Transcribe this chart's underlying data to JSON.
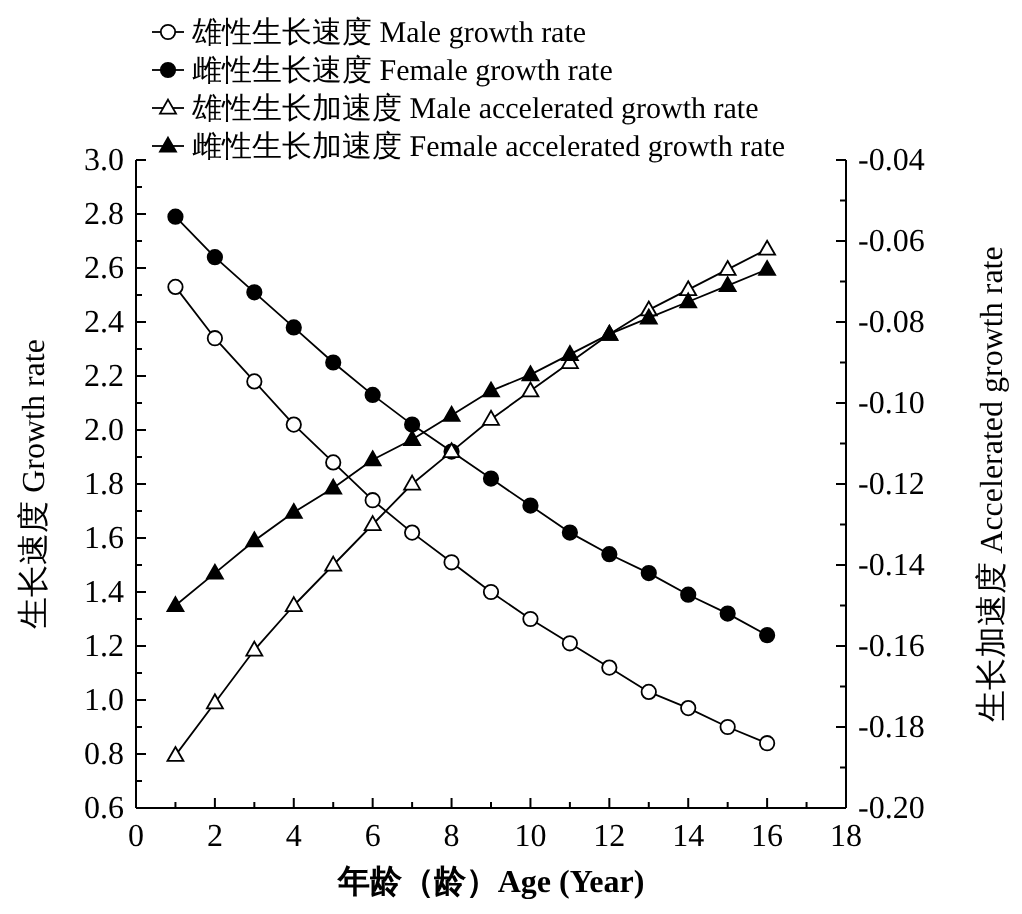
{
  "chart_data": {
    "type": "line",
    "xlabel": "年龄（龄）Age (Year)",
    "ylabel": "生长速度 Growth rate",
    "y2label": "生长加速度 Accelerated growth rate",
    "x": [
      1,
      2,
      3,
      4,
      5,
      6,
      7,
      8,
      9,
      10,
      11,
      12,
      13,
      14,
      15,
      16
    ],
    "xlim": [
      0,
      18
    ],
    "xticks": [
      0,
      {
        "value": 1,
        "label": null
      },
      2,
      {
        "value": 3,
        "label": null
      },
      4,
      {
        "value": 5,
        "label": null
      },
      6,
      {
        "value": 7,
        "label": null
      },
      8,
      {
        "value": 9,
        "label": null
      },
      10,
      {
        "value": 11,
        "label": null
      },
      12,
      {
        "value": 13,
        "label": null
      },
      14,
      {
        "value": 15,
        "label": null
      },
      16,
      {
        "value": 17,
        "label": null
      },
      18
    ],
    "ylim": [
      0.6,
      3.0
    ],
    "yticks": [
      {
        "value": 0.6,
        "label": "0.6"
      },
      {
        "value": 0.7,
        "label": null
      },
      {
        "value": 0.8,
        "label": "0.8"
      },
      {
        "value": 0.9,
        "label": null
      },
      {
        "value": 1.0,
        "label": "1.0"
      },
      {
        "value": 1.1,
        "label": null
      },
      {
        "value": 1.2,
        "label": "1.2"
      },
      {
        "value": 1.3,
        "label": null
      },
      {
        "value": 1.4,
        "label": "1.4"
      },
      {
        "value": 1.5,
        "label": null
      },
      {
        "value": 1.6,
        "label": "1.6"
      },
      {
        "value": 1.7,
        "label": null
      },
      {
        "value": 1.8,
        "label": "1.8"
      },
      {
        "value": 1.9,
        "label": null
      },
      {
        "value": 2.0,
        "label": "2.0"
      },
      {
        "value": 2.1,
        "label": null
      },
      {
        "value": 2.2,
        "label": "2.2"
      },
      {
        "value": 2.3,
        "label": null
      },
      {
        "value": 2.4,
        "label": "2.4"
      },
      {
        "value": 2.5,
        "label": null
      },
      {
        "value": 2.6,
        "label": "2.6"
      },
      {
        "value": 2.7,
        "label": null
      },
      {
        "value": 2.8,
        "label": "2.8"
      },
      {
        "value": 2.9,
        "label": null
      },
      {
        "value": 3.0,
        "label": "3.0"
      }
    ],
    "y2lim": [
      -0.2,
      -0.04
    ],
    "y2ticks": [
      {
        "value": -0.2,
        "label": "-0.20"
      },
      {
        "value": -0.19,
        "label": null
      },
      {
        "value": -0.18,
        "label": "-0.18"
      },
      {
        "value": -0.17,
        "label": null
      },
      {
        "value": -0.16,
        "label": "-0.16"
      },
      {
        "value": -0.15,
        "label": null
      },
      {
        "value": -0.14,
        "label": "-0.14"
      },
      {
        "value": -0.13,
        "label": null
      },
      {
        "value": -0.12,
        "label": "-0.12"
      },
      {
        "value": -0.11,
        "label": null
      },
      {
        "value": -0.1,
        "label": "-0.10"
      },
      {
        "value": -0.09,
        "label": null
      },
      {
        "value": -0.08,
        "label": "-0.08"
      },
      {
        "value": -0.07,
        "label": null
      },
      {
        "value": -0.06,
        "label": "-0.06"
      },
      {
        "value": -0.05,
        "label": null
      },
      {
        "value": -0.04,
        "label": "-0.04"
      }
    ],
    "legend": "top left",
    "grid": false,
    "line_style": "solid",
    "series": [
      {
        "name": "雄性生长速度 Male growth rate",
        "color": "#000000",
        "marker": "circle",
        "values": [
          2.53,
          2.34,
          2.18,
          2.02,
          1.88,
          1.74,
          1.62,
          1.51,
          1.4,
          1.3,
          1.21,
          1.12,
          1.03,
          0.97,
          0.9,
          0.84
        ]
      },
      {
        "name": "雌性生长速度 Female growth rate",
        "color": "#000000",
        "marker": "circle",
        "values": [
          2.79,
          2.64,
          2.51,
          2.38,
          2.25,
          2.13,
          2.02,
          1.92,
          1.82,
          1.72,
          1.62,
          1.54,
          1.47,
          1.39,
          1.32,
          1.24
        ]
      },
      {
        "name": "雄性生长加速度 Male accelerated growth rate",
        "color": "#000000",
        "marker": "triangle",
        "axis": "y2",
        "values": [
          -0.187,
          -0.174,
          -0.161,
          -0.15,
          -0.14,
          -0.13,
          -0.12,
          -0.112,
          -0.104,
          -0.097,
          -0.09,
          -0.083,
          -0.077,
          -0.072,
          -0.067,
          -0.062
        ]
      },
      {
        "name": "雌性生长加速度 Female accelerated growth rate",
        "color": "#000000",
        "marker": "triangle",
        "axis": "y2",
        "values": [
          -0.15,
          -0.142,
          -0.134,
          -0.127,
          -0.121,
          -0.114,
          -0.109,
          -0.103,
          -0.097,
          -0.093,
          -0.088,
          -0.083,
          -0.079,
          -0.075,
          -0.071,
          -0.067
        ]
      }
    ]
  }
}
